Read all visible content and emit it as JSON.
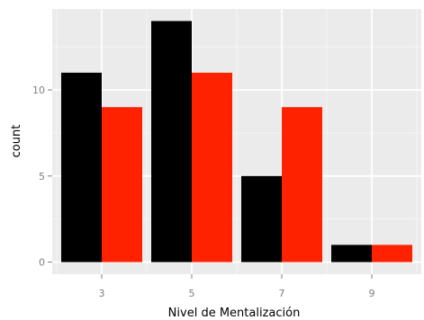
{
  "chart_data": {
    "type": "bar",
    "xlabel": "Nivel de Mentalización",
    "ylabel": "count",
    "x": [
      3,
      5,
      7,
      9
    ],
    "xlim": [
      1.9,
      10.1
    ],
    "ylim": [
      -0.7,
      14.7
    ],
    "x_ticks": [
      3,
      5,
      7,
      9
    ],
    "y_ticks": [
      0,
      5,
      10
    ],
    "bar_width": 1.8,
    "grid": true,
    "legend": "none",
    "series": [
      {
        "values": [
          11,
          14,
          5,
          1
        ],
        "color": "#000000"
      },
      {
        "values": [
          9,
          11,
          9,
          1
        ],
        "color": "#ff2200"
      }
    ],
    "panel_background": "#ebebeb",
    "grid_color": "#ffffff"
  }
}
